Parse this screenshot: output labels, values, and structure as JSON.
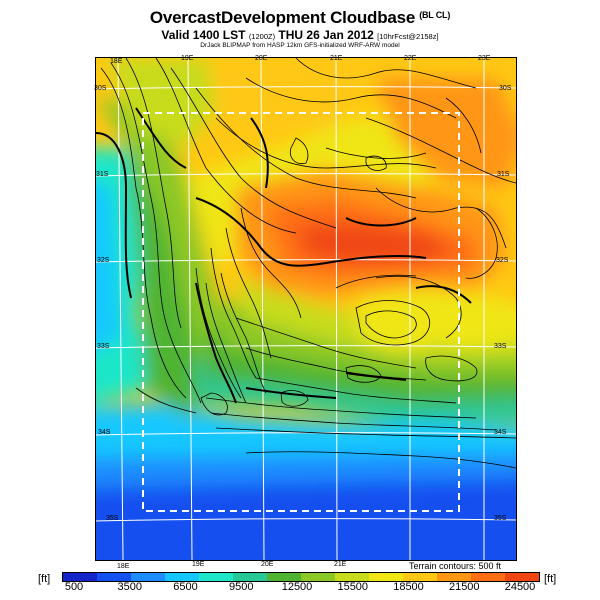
{
  "header": {
    "title": "OvercastDevelopment Cloudbase",
    "title_suffix": "(BL CL)",
    "valid_main": "Valid 1400 LST",
    "valid_code": "(1200Z)",
    "valid_date": "THU 26 Jan 2012",
    "valid_run": "[10hrFcst@2158z]",
    "credit": "DrJack BLIPMAP from HASP 12km GFS-initialized WRF-ARW model"
  },
  "map": {
    "lon_labels_top": [
      "18E",
      "19E",
      "20E",
      "21E",
      "22E",
      "23E"
    ],
    "lon_labels_bottom": [
      "18E",
      "19E",
      "20E",
      "21E"
    ],
    "lat_labels_left": [
      "30S",
      "31S",
      "32S",
      "33S",
      "34S",
      "35S"
    ],
    "lat_labels_right": [
      "30S",
      "31S",
      "32S",
      "33S",
      "34S",
      "35S"
    ],
    "terrain_note": "Terrain contours: 500 ft"
  },
  "colorbar": {
    "unit": "[ft]",
    "labels": [
      "500",
      "3500",
      "6500",
      "9500",
      "12500",
      "15500",
      "18500",
      "21500",
      "24500"
    ],
    "colors": [
      "#1426c8",
      "#1450f0",
      "#1e8cff",
      "#14c8ff",
      "#1ee6c8",
      "#28c896",
      "#50b432",
      "#8cc828",
      "#c8dc1e",
      "#f0e614",
      "#ffc814",
      "#ff9614",
      "#ff6e14",
      "#f04614"
    ]
  }
}
